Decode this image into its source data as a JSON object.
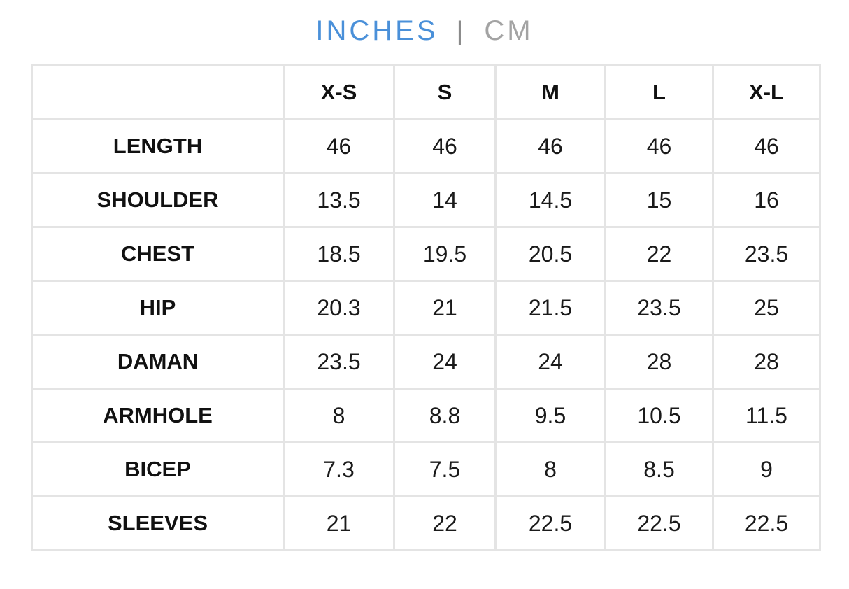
{
  "tabs": {
    "items": [
      "INCHES",
      "CM"
    ],
    "active": 0,
    "separator": "|"
  },
  "table": {
    "columns": [
      "X-S",
      "S",
      "M",
      "L",
      "X-L"
    ],
    "rows": [
      {
        "label": "LENGTH",
        "values": [
          "46",
          "46",
          "46",
          "46",
          "46"
        ]
      },
      {
        "label": "SHOULDER",
        "values": [
          "13.5",
          "14",
          "14.5",
          "15",
          "16"
        ]
      },
      {
        "label": "CHEST",
        "values": [
          "18.5",
          "19.5",
          "20.5",
          "22",
          "23.5"
        ]
      },
      {
        "label": "HIP",
        "values": [
          "20.3",
          "21",
          "21.5",
          "23.5",
          "25"
        ]
      },
      {
        "label": "DAMAN",
        "values": [
          "23.5",
          "24",
          "24",
          "28",
          "28"
        ]
      },
      {
        "label": "ARMHOLE",
        "values": [
          "8",
          "8.8",
          "9.5",
          "10.5",
          "11.5"
        ]
      },
      {
        "label": "BICEP",
        "values": [
          "7.3",
          "7.5",
          "8",
          "8.5",
          "9"
        ]
      },
      {
        "label": "SLEEVES",
        "values": [
          "21",
          "22",
          "22.5",
          "22.5",
          "22.5"
        ]
      }
    ]
  }
}
